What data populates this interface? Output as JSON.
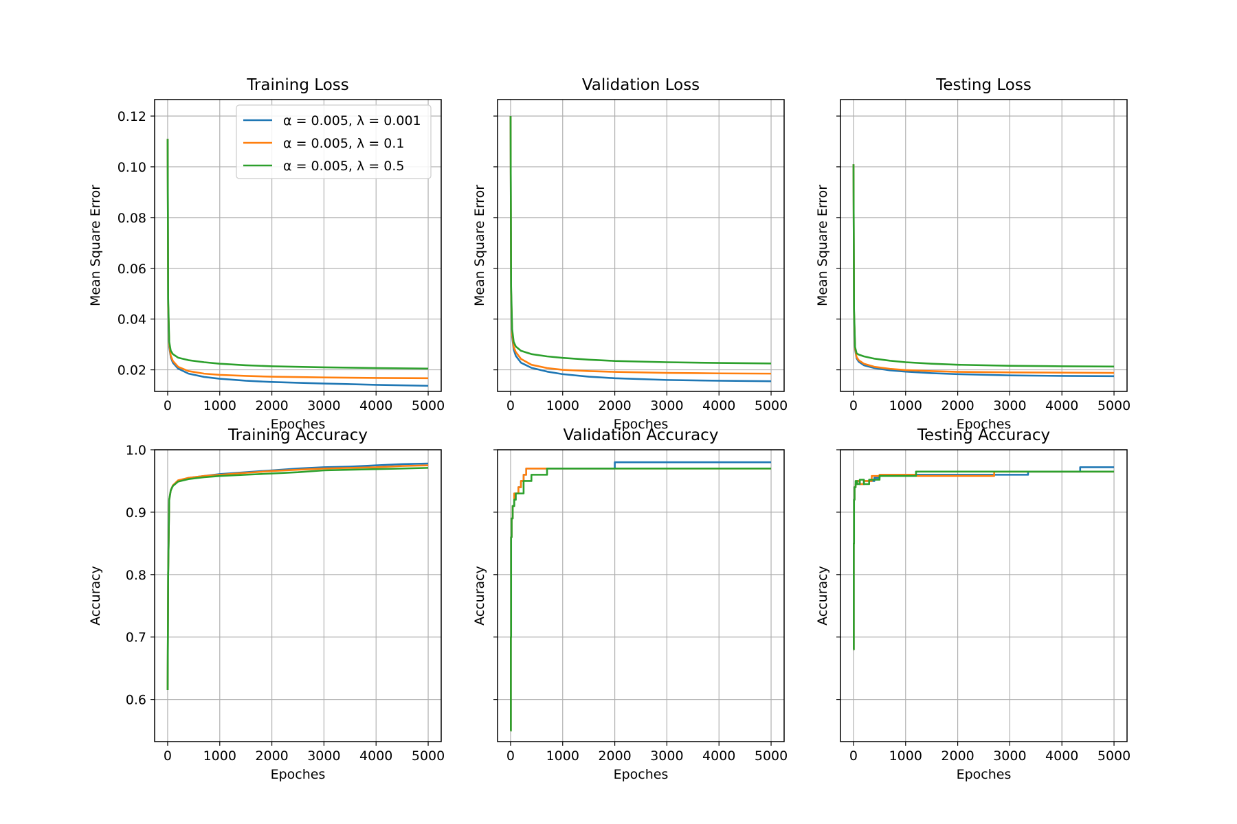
{
  "chart_data": [
    {
      "type": "line",
      "title": "Training Loss",
      "xlabel": "Epoches",
      "ylabel": "Mean Square Error",
      "xlim": [
        -250,
        5250
      ],
      "ylim": [
        0.0115,
        0.1265
      ],
      "xticks": [
        0,
        1000,
        2000,
        3000,
        4000,
        5000
      ],
      "xtick_labels": [
        "0",
        "1000",
        "2000",
        "3000",
        "4000",
        "5000"
      ],
      "yticks": [
        0.02,
        0.04,
        0.06,
        0.08,
        0.1,
        0.12
      ],
      "ytick_labels": [
        "0.02",
        "0.04",
        "0.06",
        "0.08",
        "0.10",
        "0.12"
      ],
      "grid": true,
      "legend": "upper-right",
      "series": [
        {
          "name": "α = 0.005, λ = 0.001",
          "color": "#1f77b4",
          "step": false,
          "x": [
            0,
            10,
            30,
            60,
            100,
            200,
            400,
            700,
            1000,
            1500,
            2000,
            3000,
            4000,
            5000
          ],
          "y": [
            0.111,
            0.045,
            0.029,
            0.025,
            0.0228,
            0.0205,
            0.0185,
            0.0172,
            0.0165,
            0.0157,
            0.0152,
            0.0146,
            0.0141,
            0.0137
          ]
        },
        {
          "name": "α = 0.005, λ = 0.1",
          "color": "#ff7f0e",
          "step": false,
          "x": [
            0,
            10,
            30,
            60,
            100,
            200,
            400,
            700,
            1000,
            1500,
            2000,
            3000,
            4000,
            5000
          ],
          "y": [
            0.111,
            0.046,
            0.03,
            0.0255,
            0.0235,
            0.0212,
            0.0195,
            0.0185,
            0.018,
            0.0176,
            0.0173,
            0.017,
            0.0168,
            0.0167
          ]
        },
        {
          "name": "α = 0.005, λ = 0.5",
          "color": "#2ca02c",
          "step": false,
          "x": [
            0,
            10,
            30,
            60,
            100,
            200,
            400,
            700,
            1000,
            1500,
            2000,
            3000,
            4000,
            5000
          ],
          "y": [
            0.111,
            0.048,
            0.031,
            0.0275,
            0.0262,
            0.0248,
            0.0238,
            0.023,
            0.0224,
            0.0218,
            0.0214,
            0.021,
            0.0207,
            0.0205
          ]
        }
      ]
    },
    {
      "type": "line",
      "title": "Validation Loss",
      "xlabel": "Epoches",
      "ylabel": "Mean Square Error",
      "xlim": [
        -250,
        5250
      ],
      "ylim": [
        0.0115,
        0.1265
      ],
      "xticks": [
        0,
        1000,
        2000,
        3000,
        4000,
        5000
      ],
      "xtick_labels": [
        "0",
        "1000",
        "2000",
        "3000",
        "4000",
        "5000"
      ],
      "yticks": [
        0.02,
        0.04,
        0.06,
        0.08,
        0.1,
        0.12
      ],
      "ytick_labels": [],
      "grid": true,
      "series": [
        {
          "color": "#1f77b4",
          "step": false,
          "x": [
            0,
            10,
            30,
            60,
            100,
            200,
            400,
            700,
            1000,
            1500,
            2000,
            3000,
            4000,
            5000
          ],
          "y": [
            0.12,
            0.05,
            0.033,
            0.028,
            0.0255,
            0.0228,
            0.0208,
            0.0193,
            0.0183,
            0.0173,
            0.0167,
            0.016,
            0.0157,
            0.0155
          ]
        },
        {
          "color": "#ff7f0e",
          "step": false,
          "x": [
            0,
            10,
            30,
            60,
            100,
            200,
            400,
            700,
            1000,
            1500,
            2000,
            3000,
            4000,
            5000
          ],
          "y": [
            0.12,
            0.051,
            0.034,
            0.029,
            0.027,
            0.0243,
            0.022,
            0.0207,
            0.02,
            0.0195,
            0.0192,
            0.0188,
            0.0186,
            0.0185
          ]
        },
        {
          "color": "#2ca02c",
          "step": false,
          "x": [
            0,
            10,
            30,
            60,
            100,
            200,
            400,
            700,
            1000,
            1500,
            2000,
            3000,
            4000,
            5000
          ],
          "y": [
            0.12,
            0.053,
            0.036,
            0.031,
            0.0292,
            0.0275,
            0.0262,
            0.0253,
            0.0247,
            0.024,
            0.0235,
            0.023,
            0.0227,
            0.0225
          ]
        }
      ]
    },
    {
      "type": "line",
      "title": "Testing Loss",
      "xlabel": "Epoches",
      "ylabel": "Mean Square Error",
      "xlim": [
        -250,
        5250
      ],
      "ylim": [
        0.0115,
        0.1265
      ],
      "xticks": [
        0,
        1000,
        2000,
        3000,
        4000,
        5000
      ],
      "xtick_labels": [
        "0",
        "1000",
        "2000",
        "3000",
        "4000",
        "5000"
      ],
      "yticks": [
        0.02,
        0.04,
        0.06,
        0.08,
        0.1,
        0.12
      ],
      "ytick_labels": [],
      "grid": true,
      "series": [
        {
          "color": "#1f77b4",
          "step": false,
          "x": [
            0,
            10,
            30,
            60,
            100,
            200,
            400,
            700,
            1000,
            1500,
            2000,
            3000,
            4000,
            5000
          ],
          "y": [
            0.101,
            0.042,
            0.028,
            0.0245,
            0.0232,
            0.0218,
            0.0207,
            0.0198,
            0.0193,
            0.0187,
            0.0183,
            0.0178,
            0.0176,
            0.0175
          ]
        },
        {
          "color": "#ff7f0e",
          "step": false,
          "x": [
            0,
            10,
            30,
            60,
            100,
            200,
            400,
            700,
            1000,
            1500,
            2000,
            3000,
            4000,
            5000
          ],
          "y": [
            0.101,
            0.043,
            0.0285,
            0.025,
            0.0238,
            0.0224,
            0.0212,
            0.0204,
            0.0199,
            0.0195,
            0.0192,
            0.019,
            0.0189,
            0.0188
          ]
        },
        {
          "color": "#2ca02c",
          "step": false,
          "x": [
            0,
            10,
            30,
            60,
            100,
            200,
            400,
            700,
            1000,
            1500,
            2000,
            3000,
            4000,
            5000
          ],
          "y": [
            0.101,
            0.044,
            0.029,
            0.0265,
            0.026,
            0.0253,
            0.0244,
            0.0236,
            0.023,
            0.0224,
            0.022,
            0.0216,
            0.0214,
            0.0213
          ]
        }
      ]
    },
    {
      "type": "line",
      "title": "Training Accuracy",
      "xlabel": "Epoches",
      "ylabel": "Accuracy",
      "xlim": [
        -250,
        5250
      ],
      "ylim": [
        0.5325,
        1.0
      ],
      "xticks": [
        0,
        1000,
        2000,
        3000,
        4000,
        5000
      ],
      "xtick_labels": [
        "0",
        "1000",
        "2000",
        "3000",
        "4000",
        "5000"
      ],
      "yticks": [
        0.6,
        0.7,
        0.8,
        0.9,
        1.0
      ],
      "ytick_labels": [
        "0.6",
        "0.7",
        "0.8",
        "0.9",
        "1.0"
      ],
      "grid": true,
      "series": [
        {
          "color": "#1f77b4",
          "step": false,
          "x": [
            0,
            10,
            30,
            60,
            100,
            200,
            400,
            700,
            1000,
            1500,
            2000,
            2500,
            3000,
            3500,
            4000,
            4500,
            5000
          ],
          "y": [
            0.615,
            0.8,
            0.92,
            0.935,
            0.942,
            0.95,
            0.955,
            0.958,
            0.961,
            0.964,
            0.967,
            0.97,
            0.972,
            0.973,
            0.975,
            0.977,
            0.978
          ]
        },
        {
          "color": "#ff7f0e",
          "step": false,
          "x": [
            0,
            10,
            30,
            60,
            100,
            200,
            400,
            700,
            1000,
            1500,
            2000,
            2500,
            3000,
            3500,
            4000,
            4500,
            5000
          ],
          "y": [
            0.615,
            0.8,
            0.92,
            0.935,
            0.943,
            0.951,
            0.955,
            0.958,
            0.96,
            0.963,
            0.966,
            0.968,
            0.97,
            0.971,
            0.972,
            0.974,
            0.975
          ]
        },
        {
          "color": "#2ca02c",
          "step": false,
          "x": [
            0,
            10,
            30,
            60,
            100,
            200,
            400,
            700,
            1000,
            1500,
            2000,
            2500,
            3000,
            3500,
            4000,
            4500,
            5000
          ],
          "y": [
            0.615,
            0.8,
            0.92,
            0.935,
            0.942,
            0.949,
            0.953,
            0.956,
            0.958,
            0.96,
            0.962,
            0.964,
            0.967,
            0.968,
            0.969,
            0.97,
            0.971
          ]
        }
      ]
    },
    {
      "type": "line",
      "title": "Validation Accuracy",
      "xlabel": "Epoches",
      "ylabel": "Accuracy",
      "xlim": [
        -250,
        5250
      ],
      "ylim": [
        0.5325,
        1.0
      ],
      "xticks": [
        0,
        1000,
        2000,
        3000,
        4000,
        5000
      ],
      "xtick_labels": [
        "0",
        "1000",
        "2000",
        "3000",
        "4000",
        "5000"
      ],
      "yticks": [
        0.6,
        0.7,
        0.8,
        0.9,
        1.0
      ],
      "ytick_labels": [],
      "grid": true,
      "series": [
        {
          "color": "#1f77b4",
          "step": true,
          "x": [
            0,
            5,
            10,
            20,
            40,
            70,
            100,
            150,
            200,
            250,
            300,
            2000,
            5000
          ],
          "y": [
            0.55,
            0.7,
            0.86,
            0.89,
            0.91,
            0.93,
            0.93,
            0.94,
            0.95,
            0.96,
            0.97,
            0.98,
            0.98
          ]
        },
        {
          "color": "#ff7f0e",
          "step": true,
          "x": [
            0,
            5,
            10,
            20,
            40,
            70,
            100,
            150,
            200,
            250,
            300,
            5000
          ],
          "y": [
            0.55,
            0.7,
            0.86,
            0.89,
            0.91,
            0.93,
            0.93,
            0.94,
            0.95,
            0.96,
            0.97,
            0.97
          ]
        },
        {
          "color": "#2ca02c",
          "step": true,
          "x": [
            0,
            5,
            10,
            20,
            40,
            70,
            100,
            250,
            400,
            700,
            5000
          ],
          "y": [
            0.55,
            0.7,
            0.86,
            0.89,
            0.91,
            0.92,
            0.93,
            0.95,
            0.96,
            0.97,
            0.97
          ]
        }
      ]
    },
    {
      "type": "line",
      "title": "Testing Accuracy",
      "xlabel": "Epoches",
      "ylabel": "Accuracy",
      "xlim": [
        -250,
        5250
      ],
      "ylim": [
        0.5325,
        1.0
      ],
      "xticks": [
        0,
        1000,
        2000,
        3000,
        4000,
        5000
      ],
      "xtick_labels": [
        "0",
        "1000",
        "2000",
        "3000",
        "4000",
        "5000"
      ],
      "yticks": [
        0.6,
        0.7,
        0.8,
        0.9,
        1.0
      ],
      "ytick_labels": [],
      "grid": true,
      "series": [
        {
          "color": "#1f77b4",
          "step": true,
          "x": [
            0,
            5,
            10,
            20,
            40,
            70,
            120,
            200,
            400,
            500,
            2700,
            3350,
            4350,
            5000
          ],
          "y": [
            0.68,
            0.85,
            0.92,
            0.94,
            0.945,
            0.95,
            0.945,
            0.95,
            0.955,
            0.96,
            0.96,
            0.965,
            0.972,
            0.972
          ]
        },
        {
          "color": "#ff7f0e",
          "step": true,
          "x": [
            0,
            5,
            10,
            20,
            40,
            70,
            120,
            200,
            350,
            500,
            1200,
            2700,
            5000
          ],
          "y": [
            0.68,
            0.85,
            0.92,
            0.94,
            0.945,
            0.95,
            0.945,
            0.95,
            0.958,
            0.96,
            0.958,
            0.965,
            0.965
          ]
        },
        {
          "color": "#2ca02c",
          "step": true,
          "x": [
            0,
            5,
            10,
            20,
            40,
            70,
            120,
            200,
            300,
            500,
            1200,
            5000
          ],
          "y": [
            0.68,
            0.85,
            0.92,
            0.94,
            0.95,
            0.945,
            0.952,
            0.945,
            0.952,
            0.958,
            0.965,
            0.965
          ]
        }
      ]
    }
  ]
}
